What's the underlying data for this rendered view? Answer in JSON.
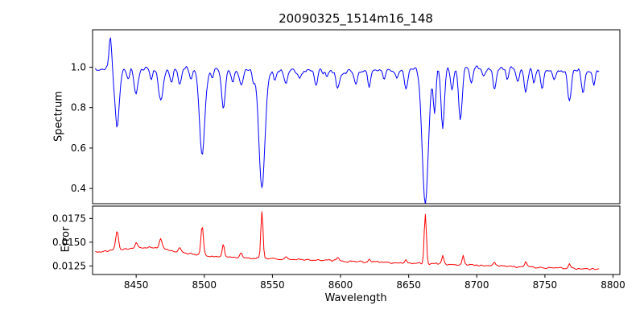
{
  "figure": {
    "background": "#ffffff"
  },
  "chart_data": {
    "type": "line",
    "title": "20090325_1514m16_148",
    "xlabel": "Wavelength",
    "x_range": [
      8418,
      8805
    ],
    "x_start": 8420,
    "x_end": 8790,
    "x_step": 0.75,
    "x_ticks": [
      8450,
      8500,
      8550,
      8600,
      8650,
      8700,
      8750,
      8800
    ],
    "x_tick_labels": [
      "8450",
      "8500",
      "8550",
      "8600",
      "8650",
      "8700",
      "8750",
      "8800"
    ],
    "panels": [
      {
        "name": "spectrum",
        "ylabel": "Spectrum",
        "color": "#0000ff",
        "ylim": [
          0.325,
          1.185
        ],
        "y_ticks": [
          0.4,
          0.6,
          0.8,
          1.0
        ],
        "y_tick_labels": [
          "0.4",
          "0.6",
          "0.8",
          "1.0"
        ],
        "continuum": 0.988,
        "continuum_wave_amp": 0.008,
        "continuum_wave_period": 37,
        "noise": 0.026,
        "features": [
          {
            "c": 8431.0,
            "d": -0.145,
            "w": 1.0
          },
          {
            "c": 8436.0,
            "d": 0.3,
            "w": 1.6
          },
          {
            "c": 8444.0,
            "d": 0.05,
            "w": 1.2
          },
          {
            "c": 8450.0,
            "d": 0.13,
            "w": 1.4
          },
          {
            "c": 8461.0,
            "d": 0.05,
            "w": 1.2
          },
          {
            "c": 8468.0,
            "d": 0.17,
            "w": 1.8
          },
          {
            "c": 8476.0,
            "d": 0.06,
            "w": 1.2
          },
          {
            "c": 8482.0,
            "d": 0.08,
            "w": 1.3
          },
          {
            "c": 8490.0,
            "d": 0.05,
            "w": 1.0
          },
          {
            "c": 8498.4,
            "d": 0.42,
            "w": 2.0
          },
          {
            "c": 8506.0,
            "d": 0.05,
            "w": 1.0
          },
          {
            "c": 8514.0,
            "d": 0.19,
            "w": 1.4
          },
          {
            "c": 8521.0,
            "d": 0.06,
            "w": 1.0
          },
          {
            "c": 8527.0,
            "d": 0.08,
            "w": 1.2
          },
          {
            "c": 8536.0,
            "d": 0.05,
            "w": 1.0
          },
          {
            "c": 8542.3,
            "d": 0.58,
            "w": 2.2
          },
          {
            "c": 8552.0,
            "d": 0.05,
            "w": 1.0
          },
          {
            "c": 8560.0,
            "d": 0.06,
            "w": 1.2
          },
          {
            "c": 8570.0,
            "d": 0.04,
            "w": 1.0
          },
          {
            "c": 8582.0,
            "d": 0.07,
            "w": 1.2
          },
          {
            "c": 8590.0,
            "d": 0.04,
            "w": 1.0
          },
          {
            "c": 8598.0,
            "d": 0.09,
            "w": 1.3
          },
          {
            "c": 8611.0,
            "d": 0.06,
            "w": 1.1
          },
          {
            "c": 8621.0,
            "d": 0.08,
            "w": 1.1
          },
          {
            "c": 8632.0,
            "d": 0.04,
            "w": 1.0
          },
          {
            "c": 8641.0,
            "d": 0.05,
            "w": 1.0
          },
          {
            "c": 8648.0,
            "d": 0.1,
            "w": 1.3
          },
          {
            "c": 8662.2,
            "d": 0.66,
            "w": 2.3
          },
          {
            "c": 8669.0,
            "d": 0.2,
            "w": 1.0
          },
          {
            "c": 8675.0,
            "d": 0.3,
            "w": 1.2
          },
          {
            "c": 8682.0,
            "d": 0.1,
            "w": 1.0
          },
          {
            "c": 8688.0,
            "d": 0.26,
            "w": 1.3
          },
          {
            "c": 8696.0,
            "d": 0.07,
            "w": 1.0
          },
          {
            "c": 8705.0,
            "d": 0.05,
            "w": 1.0
          },
          {
            "c": 8713.0,
            "d": 0.1,
            "w": 1.2
          },
          {
            "c": 8722.0,
            "d": 0.05,
            "w": 1.0
          },
          {
            "c": 8730.0,
            "d": 0.06,
            "w": 1.0
          },
          {
            "c": 8736.0,
            "d": 0.11,
            "w": 1.2
          },
          {
            "c": 8742.0,
            "d": 0.06,
            "w": 1.0
          },
          {
            "c": 8748.0,
            "d": 0.09,
            "w": 1.1
          },
          {
            "c": 8757.0,
            "d": 0.05,
            "w": 1.0
          },
          {
            "c": 8768.0,
            "d": 0.14,
            "w": 1.3
          },
          {
            "c": 8778.0,
            "d": 0.11,
            "w": 1.2
          },
          {
            "c": 8786.0,
            "d": 0.07,
            "w": 1.0
          }
        ]
      },
      {
        "name": "error",
        "ylabel": "Error",
        "color": "#ff0000",
        "ylim": [
          0.0116,
          0.0188
        ],
        "y_ticks": [
          0.0125,
          0.015,
          0.0175
        ],
        "y_tick_labels": [
          "0.0125",
          "0.0150",
          "0.0175"
        ],
        "base_start": 0.01385,
        "base_end": 0.01215,
        "noise": 0.00018,
        "spikes": [
          {
            "c": 8460.0,
            "h": 0.0008,
            "w": 20.0
          },
          {
            "c": 8436.0,
            "h": 0.002,
            "w": 1.0
          },
          {
            "c": 8450.0,
            "h": 0.0006,
            "w": 0.9
          },
          {
            "c": 8468.0,
            "h": 0.001,
            "w": 1.0
          },
          {
            "c": 8482.0,
            "h": 0.0004,
            "w": 0.8
          },
          {
            "c": 8498.4,
            "h": 0.0031,
            "w": 0.9
          },
          {
            "c": 8514.0,
            "h": 0.0013,
            "w": 0.8
          },
          {
            "c": 8527.0,
            "h": 0.0005,
            "w": 0.8
          },
          {
            "c": 8542.3,
            "h": 0.0049,
            "w": 0.8
          },
          {
            "c": 8560.0,
            "h": 0.0003,
            "w": 0.8
          },
          {
            "c": 8598.0,
            "h": 0.0004,
            "w": 0.8
          },
          {
            "c": 8621.0,
            "h": 0.0003,
            "w": 0.7
          },
          {
            "c": 8648.0,
            "h": 0.0004,
            "w": 0.7
          },
          {
            "c": 8662.2,
            "h": 0.0052,
            "w": 0.8
          },
          {
            "c": 8675.0,
            "h": 0.0009,
            "w": 0.7
          },
          {
            "c": 8690.0,
            "h": 0.001,
            "w": 0.7
          },
          {
            "c": 8713.0,
            "h": 0.0004,
            "w": 0.7
          },
          {
            "c": 8736.0,
            "h": 0.0005,
            "w": 0.7
          },
          {
            "c": 8768.0,
            "h": 0.0005,
            "w": 0.7
          }
        ]
      }
    ]
  }
}
